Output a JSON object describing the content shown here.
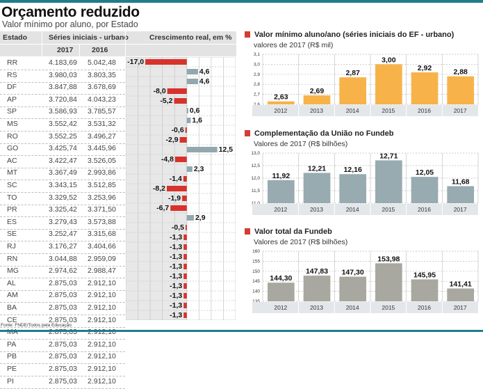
{
  "header": {
    "title": "Orçamento reduzido",
    "subtitle": "Valor mínimo por aluno, por Estado"
  },
  "table": {
    "col_estado": "Estado",
    "col_series": "Séries iniciais - urbano",
    "col_growth": "Crescimento real, em %",
    "year_2017": "2017",
    "year_2016": "2016",
    "rows": [
      {
        "estado": "RR",
        "v2017": "4.183,69",
        "v2016": "5.042,48",
        "growth": -17.0,
        "label": "-17,0"
      },
      {
        "estado": "RS",
        "v2017": "3.980,03",
        "v2016": "3.803,35",
        "growth": 4.6,
        "label": "4,6"
      },
      {
        "estado": "DF",
        "v2017": "3.847,88",
        "v2016": "3.678,69",
        "growth": 4.6,
        "label": "4,6"
      },
      {
        "estado": "AP",
        "v2017": "3.720,84",
        "v2016": "4.043,23",
        "growth": -8.0,
        "label": "-8,0"
      },
      {
        "estado": "SP",
        "v2017": "3.586,93",
        "v2016": "3.785,57",
        "growth": -5.2,
        "label": "-5,2"
      },
      {
        "estado": "MS",
        "v2017": "3.552,42",
        "v2016": "3.531,32",
        "growth": 0.6,
        "label": "0,6"
      },
      {
        "estado": "RO",
        "v2017": "3.552,25",
        "v2016": "3.496,27",
        "growth": 1.6,
        "label": "1,6"
      },
      {
        "estado": "GO",
        "v2017": "3.425,74",
        "v2016": "3.445,96",
        "growth": -0.6,
        "label": "-0,6"
      },
      {
        "estado": "AC",
        "v2017": "3.422,47",
        "v2016": "3.526,05",
        "growth": -2.9,
        "label": "-2,9"
      },
      {
        "estado": "MT",
        "v2017": "3.367,49",
        "v2016": "2.993,86",
        "growth": 12.5,
        "label": "12,5"
      },
      {
        "estado": "SC",
        "v2017": "3.343,15",
        "v2016": "3.512,85",
        "growth": -4.8,
        "label": "-4,8"
      },
      {
        "estado": "TO",
        "v2017": "3.329,52",
        "v2016": "3.253,96",
        "growth": 2.3,
        "label": "2,3"
      },
      {
        "estado": "PR",
        "v2017": "3.325,42",
        "v2016": "3.371,50",
        "growth": -1.4,
        "label": "-1,4"
      },
      {
        "estado": "ES",
        "v2017": "3.279,43",
        "v2016": "3.573,88",
        "growth": -8.2,
        "label": "-8,2"
      },
      {
        "estado": "SE",
        "v2017": "3.252,47",
        "v2016": "3.315,68",
        "growth": -1.9,
        "label": "-1,9"
      },
      {
        "estado": "RJ",
        "v2017": "3.176,27",
        "v2016": "3.404,66",
        "growth": -6.7,
        "label": "-6,7"
      },
      {
        "estado": "RN",
        "v2017": "3.044,88",
        "v2016": "2.959,09",
        "growth": 2.9,
        "label": "2,9"
      },
      {
        "estado": "MG",
        "v2017": "2.974,62",
        "v2016": "2.988,47",
        "growth": -0.5,
        "label": "-0,5"
      },
      {
        "estado": "AL",
        "v2017": "2.875,03",
        "v2016": "2.912,10",
        "growth": -1.3,
        "label": "-1,3"
      },
      {
        "estado": "AM",
        "v2017": "2.875,03",
        "v2016": "2.912,10",
        "growth": -1.3,
        "label": "-1,3"
      },
      {
        "estado": "BA",
        "v2017": "2.875,03",
        "v2016": "2.912,10",
        "growth": -1.3,
        "label": "-1,3"
      },
      {
        "estado": "CE",
        "v2017": "2.875,03",
        "v2016": "2.912,10",
        "growth": -1.3,
        "label": "-1,3"
      },
      {
        "estado": "MA",
        "v2017": "2.875,03",
        "v2016": "2.912,10",
        "growth": -1.3,
        "label": "-1,3"
      },
      {
        "estado": "PA",
        "v2017": "2.875,03",
        "v2016": "2.912,10",
        "growth": -1.3,
        "label": "-1,3"
      },
      {
        "estado": "PB",
        "v2017": "2.875,03",
        "v2016": "2.912,10",
        "growth": -1.3,
        "label": "-1,3"
      },
      {
        "estado": "PE",
        "v2017": "2.875,03",
        "v2016": "2.912,10",
        "growth": -1.3,
        "label": "-1,3"
      },
      {
        "estado": "PI",
        "v2017": "2.875,03",
        "v2016": "2.912,10",
        "growth": -1.3,
        "label": "-1,3"
      }
    ]
  },
  "source": "Fonte: FNDE/Todos pela Educação",
  "colors": {
    "negative": "#d7322b",
    "positive": "#92a8ae",
    "chart1": "#f7b34a",
    "chart2": "#97abb1",
    "chart3": "#a8a8a0",
    "accent": "#1f7d8c",
    "header_bg": "#e3e3e3"
  },
  "chart_data": [
    {
      "type": "bar",
      "orientation": "horizontal-diverging",
      "title": "Crescimento real, em %",
      "categories": [
        "RR",
        "RS",
        "DF",
        "AP",
        "SP",
        "MS",
        "RO",
        "GO",
        "AC",
        "MT",
        "SC",
        "TO",
        "PR",
        "ES",
        "SE",
        "RJ",
        "RN",
        "MG",
        "AL",
        "AM",
        "BA",
        "CE",
        "MA",
        "PA",
        "PB",
        "PE",
        "PI"
      ],
      "values": [
        -17.0,
        4.6,
        4.6,
        -8.0,
        -5.2,
        0.6,
        1.6,
        -0.6,
        -2.9,
        12.5,
        -4.8,
        2.3,
        -1.4,
        -8.2,
        -1.9,
        -6.7,
        2.9,
        -0.5,
        -1.3,
        -1.3,
        -1.3,
        -1.3,
        -1.3,
        -1.3,
        -1.3,
        -1.3,
        -1.3
      ],
      "xlim": [
        -25,
        20
      ],
      "grid": true
    },
    {
      "type": "bar",
      "title": "Valor mínimo aluno/ano (séries iniciais do EF - urbano)",
      "subtitle": "valores de 2017 (R$ mil)",
      "categories": [
        "2012",
        "2013",
        "2014",
        "2015",
        "2016",
        "2017"
      ],
      "values": [
        2.63,
        2.69,
        2.87,
        3.0,
        2.92,
        2.88
      ],
      "labels": [
        "2,63",
        "2,69",
        "2,87",
        "3,00",
        "2,92",
        "2,88"
      ],
      "yticks": [
        "3,1",
        "3,0",
        "2,9",
        "2,8",
        "2,7",
        "2,6"
      ],
      "ylim": [
        2.6,
        3.1
      ],
      "grid": true
    },
    {
      "type": "bar",
      "title": "Complementação da União no Fundeb",
      "subtitle": "Valores de 2017 (R$ bilhões)",
      "categories": [
        "2012",
        "2013",
        "2014",
        "2015",
        "2016",
        "2017"
      ],
      "values": [
        11.92,
        12.21,
        12.16,
        12.71,
        12.05,
        11.68
      ],
      "labels": [
        "11,92",
        "12,21",
        "12,16",
        "12,71",
        "12,05",
        "11,68"
      ],
      "yticks": [
        "13,0",
        "12,5",
        "12,0",
        "11,5",
        "11,0"
      ],
      "ylim": [
        11.0,
        13.0
      ],
      "grid": true
    },
    {
      "type": "bar",
      "title": "Valor total da Fundeb",
      "subtitle": "Valores de 2017 (R$ bilhões)",
      "categories": [
        "2012",
        "2013",
        "2014",
        "2015",
        "2016",
        "2017"
      ],
      "values": [
        144.3,
        147.83,
        147.3,
        153.98,
        145.95,
        141.41
      ],
      "labels": [
        "144,30",
        "147,83",
        "147,30",
        "153,98",
        "145,95",
        "141,41"
      ],
      "yticks": [
        "160",
        "155",
        "150",
        "145",
        "140",
        "135"
      ],
      "ylim": [
        135,
        160
      ],
      "grid": true
    }
  ]
}
